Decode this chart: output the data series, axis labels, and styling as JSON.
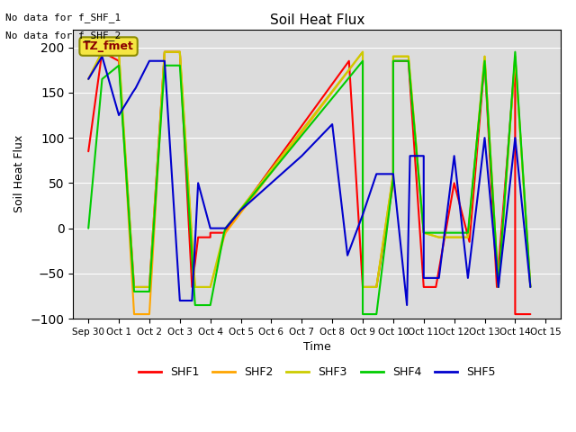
{
  "title": "Soil Heat Flux",
  "ylabel": "Soil Heat Flux",
  "xlabel": "Time",
  "annotation_lines": [
    "No data for f_SHF_1",
    "No data for f_SHF_2"
  ],
  "box_label": "TZ_fmet",
  "colors": {
    "SHF1": "#ff0000",
    "SHF2": "#ffa500",
    "SHF3": "#cccc00",
    "SHF4": "#00cc00",
    "SHF5": "#0000cd"
  },
  "x_tick_labels": [
    "Sep 30",
    "Oct 1",
    "Oct 2",
    "Oct 3",
    "Oct 4",
    "Oct 5",
    "Oct 6",
    "Oct 7",
    "Oct 8",
    "Oct 9",
    "Oct 10",
    "Oct 11",
    "Oct 12",
    "Oct 13",
    "Oct 14",
    "Oct 15"
  ],
  "ylim": [
    -100,
    220
  ],
  "yticks": [
    -100,
    -50,
    0,
    50,
    100,
    150,
    200
  ],
  "series_data": {
    "SHF1": {
      "x": [
        0.0,
        0.45,
        1.0,
        1.5,
        2.0,
        2.5,
        3.0,
        3.4,
        3.6,
        4.0,
        4.0,
        4.45,
        8.55,
        9.0,
        9.45,
        10.0,
        10.0,
        10.5,
        11.0,
        11.0,
        11.4,
        12.0,
        12.5,
        13.0,
        13.4,
        14.0,
        14.0,
        14.5
      ],
      "y": [
        85,
        195,
        185,
        -65,
        -65,
        195,
        195,
        -65,
        -10,
        -10,
        -5,
        -5,
        185,
        -65,
        -65,
        50,
        185,
        185,
        -65,
        -65,
        -65,
        50,
        -15,
        185,
        -65,
        185,
        -95,
        -95
      ]
    },
    "SHF2": {
      "x": [
        0.0,
        0.45,
        1.0,
        1.5,
        2.0,
        2.5,
        3.0,
        3.5,
        4.0,
        4.45,
        4.5,
        9.0,
        9.0,
        9.45,
        10.0,
        10.0,
        10.5,
        11.0,
        11.0,
        11.5,
        12.0,
        12.45,
        13.0,
        13.45,
        14.0,
        14.5
      ],
      "y": [
        165,
        195,
        195,
        -95,
        -95,
        195,
        195,
        -65,
        -65,
        -10,
        -5,
        195,
        -65,
        -65,
        60,
        190,
        190,
        -5,
        -5,
        -10,
        -10,
        -10,
        190,
        -65,
        190,
        -65
      ]
    },
    "SHF3": {
      "x": [
        0.0,
        0.45,
        1.0,
        1.5,
        2.0,
        2.5,
        3.0,
        3.5,
        4.0,
        4.45,
        4.5,
        9.0,
        9.0,
        9.45,
        10.0,
        10.0,
        10.5,
        11.0,
        11.0,
        11.5,
        12.0,
        12.45,
        13.0,
        13.45,
        14.0,
        14.5
      ],
      "y": [
        165,
        195,
        195,
        -65,
        -65,
        195,
        195,
        -65,
        -65,
        -5,
        0,
        195,
        -65,
        -65,
        60,
        190,
        190,
        -5,
        -5,
        -10,
        -10,
        -10,
        190,
        -65,
        190,
        -65
      ]
    },
    "SHF4": {
      "x": [
        0.0,
        0.45,
        1.0,
        1.5,
        2.0,
        2.5,
        3.0,
        3.5,
        4.0,
        4.45,
        4.5,
        9.0,
        9.0,
        9.45,
        10.0,
        10.0,
        10.5,
        11.0,
        11.0,
        11.4,
        12.0,
        12.45,
        13.0,
        13.45,
        14.0,
        14.5
      ],
      "y": [
        0,
        165,
        180,
        -70,
        -70,
        180,
        180,
        -85,
        -85,
        -5,
        0,
        185,
        -95,
        -95,
        55,
        185,
        185,
        -5,
        -5,
        -5,
        -5,
        -5,
        185,
        -65,
        195,
        -65
      ]
    },
    "SHF5": {
      "x": [
        0.0,
        0.45,
        1.0,
        1.45,
        1.55,
        2.0,
        2.5,
        3.0,
        3.4,
        3.6,
        4.0,
        4.5,
        5.0,
        6.0,
        7.0,
        8.0,
        8.5,
        9.0,
        9.45,
        10.0,
        10.45,
        10.55,
        11.0,
        11.0,
        11.5,
        12.0,
        12.45,
        13.0,
        13.45,
        14.0,
        14.5
      ],
      "y": [
        165,
        190,
        125,
        150,
        155,
        185,
        185,
        -80,
        -80,
        50,
        0,
        0,
        20,
        50,
        80,
        115,
        -30,
        15,
        60,
        60,
        -85,
        80,
        80,
        -55,
        -55,
        80,
        -55,
        100,
        -65,
        100,
        -65
      ]
    }
  },
  "figsize": [
    6.4,
    4.8
  ],
  "dpi": 100,
  "plot_bg": "#dcdcdc",
  "grid_color": "white",
  "linewidth": 1.5
}
